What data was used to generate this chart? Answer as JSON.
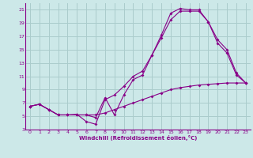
{
  "background_color": "#cce8e8",
  "grid_color": "#aacccc",
  "line_color": "#880088",
  "xlabel": "Windchill (Refroidissement éolien,°C)",
  "xlim": [
    -0.5,
    23.5
  ],
  "ylim": [
    3,
    22
  ],
  "yticks": [
    3,
    5,
    7,
    9,
    11,
    13,
    15,
    17,
    19,
    21
  ],
  "xticks": [
    0,
    1,
    2,
    3,
    4,
    5,
    6,
    7,
    8,
    9,
    10,
    11,
    12,
    13,
    14,
    15,
    16,
    17,
    18,
    19,
    20,
    21,
    22,
    23
  ],
  "line1_x": [
    0,
    1,
    2,
    3,
    4,
    5,
    6,
    7,
    8,
    9,
    10,
    11,
    12,
    13,
    14,
    15,
    16,
    17,
    18,
    19,
    20,
    21,
    22,
    23
  ],
  "line1_y": [
    6.5,
    6.8,
    6.0,
    5.2,
    5.2,
    5.3,
    4.2,
    3.8,
    7.5,
    8.2,
    9.5,
    11.0,
    11.8,
    14.2,
    17.2,
    20.5,
    21.2,
    21.0,
    21.0,
    19.2,
    16.5,
    15.0,
    11.5,
    10.0
  ],
  "line2_x": [
    0,
    1,
    2,
    3,
    4,
    5,
    6,
    7,
    8,
    9,
    10,
    11,
    12,
    13,
    14,
    15,
    16,
    17,
    18,
    19,
    20,
    21,
    22,
    23
  ],
  "line2_y": [
    6.5,
    6.8,
    6.0,
    5.2,
    5.2,
    5.2,
    5.2,
    4.8,
    7.8,
    5.2,
    8.2,
    10.5,
    11.2,
    14.2,
    16.8,
    19.5,
    20.8,
    20.8,
    20.8,
    19.2,
    16.0,
    14.5,
    11.2,
    10.0
  ],
  "line3_x": [
    0,
    1,
    2,
    3,
    4,
    5,
    6,
    7,
    8,
    9,
    10,
    11,
    12,
    13,
    14,
    15,
    16,
    17,
    18,
    19,
    20,
    21,
    22,
    23
  ],
  "line3_y": [
    6.5,
    6.8,
    6.0,
    5.2,
    5.2,
    5.2,
    5.2,
    5.2,
    5.5,
    6.0,
    6.5,
    7.0,
    7.5,
    8.0,
    8.5,
    9.0,
    9.3,
    9.5,
    9.7,
    9.8,
    9.9,
    10.0,
    10.0,
    10.0
  ]
}
